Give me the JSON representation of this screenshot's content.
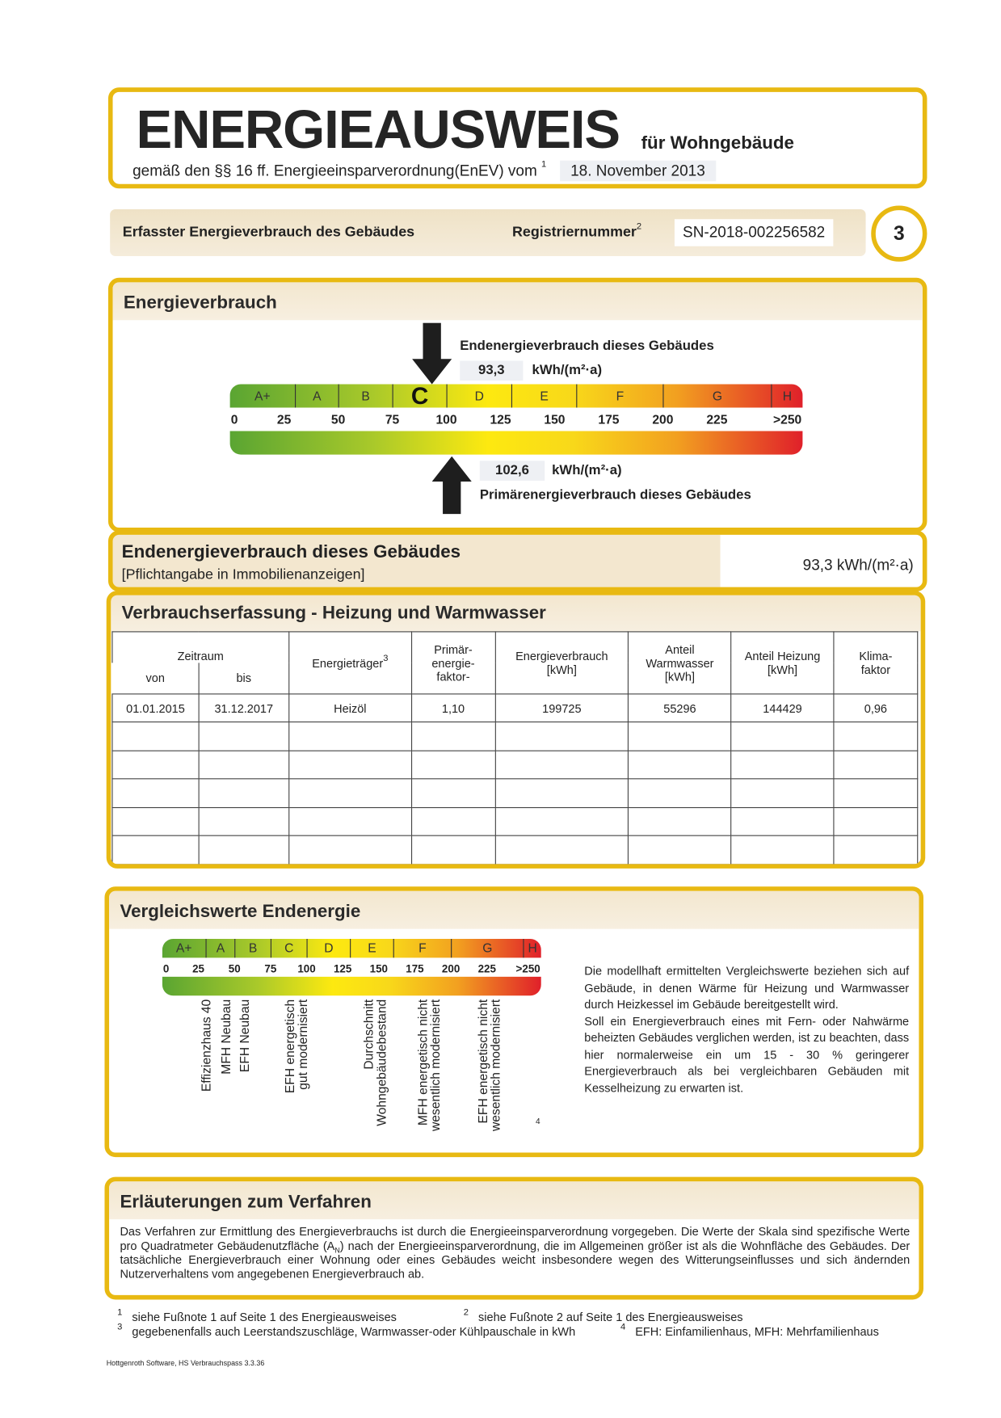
{
  "header": {
    "title": "ENERGIEAUSWEIS",
    "subtitle": "für Wohngebäude",
    "legal_basis": "gemäß den §§ 16 ff. Energieeinsparverordnung(EnEV) vom",
    "legal_basis_footnote": "1",
    "enev_date": "18. November 2013"
  },
  "register_bar": {
    "label": "Erfasster Energieverbrauch des Gebäudes",
    "reg_label": "Registriernummer",
    "reg_footnote": "2",
    "reg_number": "SN-2018-002256582",
    "page_number": "3"
  },
  "energieverbrauch": {
    "title": "Energieverbrauch",
    "end_label": "Endenergieverbrauch dieses Gebäudes",
    "end_value": "93,3",
    "unit": "kWh/(m²·a)",
    "primary_value": "102,6",
    "primary_label": "Primärenergieverbrauch dieses Gebäudes",
    "end_value_num": 93.3,
    "primary_value_num": 102.6,
    "highlighted_class": "C"
  },
  "scale": {
    "classes": [
      {
        "label": "A+",
        "from": 0,
        "to": 30
      },
      {
        "label": "A",
        "from": 30,
        "to": 50
      },
      {
        "label": "B",
        "from": 50,
        "to": 75
      },
      {
        "label": "C",
        "from": 75,
        "to": 100
      },
      {
        "label": "D",
        "from": 100,
        "to": 130
      },
      {
        "label": "E",
        "from": 130,
        "to": 160
      },
      {
        "label": "F",
        "from": 160,
        "to": 200
      },
      {
        "label": "G",
        "from": 200,
        "to": 250
      },
      {
        "label": "H",
        "from": 250,
        "to": 265
      }
    ],
    "ticks": [
      "0",
      "25",
      "50",
      "75",
      "100",
      "125",
      "150",
      "175",
      "200",
      "225",
      ">250"
    ],
    "colors": {
      "green": "#5aa532",
      "yellow": "#fde910",
      "orange": "#f2a020",
      "red": "#e0202a"
    }
  },
  "end_summary": {
    "title": "Endenergieverbrauch dieses Gebäudes",
    "note": "[Pflichtangabe in Immobilienanzeigen]",
    "value": "93,3 kWh/(m²·a)"
  },
  "verbrauch": {
    "title": "Verbrauchserfassung - Heizung und Warmwasser",
    "headers": {
      "zeitraum": "Zeitraum",
      "von": "von",
      "bis": "bis",
      "traeger": "Energieträger",
      "traeger_footnote": "3",
      "pef": "Primär-\nenergie-\nfaktor-",
      "verbrauch": "Energieverbrauch\n[kWh]",
      "warmwasser": "Anteil\nWarmwasser\n[kWh]",
      "heizung": "Anteil Heizung\n[kWh]",
      "klima": "Klima-\nfaktor"
    },
    "rows": [
      [
        "01.01.2015",
        "31.12.2017",
        "Heizöl",
        "1,10",
        "199725",
        "55296",
        "144429",
        "0,96"
      ],
      [
        "",
        "",
        "",
        "",
        "",
        "",
        "",
        ""
      ],
      [
        "",
        "",
        "",
        "",
        "",
        "",
        "",
        ""
      ],
      [
        "",
        "",
        "",
        "",
        "",
        "",
        "",
        ""
      ],
      [
        "",
        "",
        "",
        "",
        "",
        "",
        "",
        ""
      ],
      [
        "",
        "",
        "",
        "",
        "",
        "",
        "",
        ""
      ]
    ]
  },
  "vergleich": {
    "title": "Vergleichswerte Endenergie",
    "references": [
      {
        "line1": "Effizienzhaus 40",
        "line2": "",
        "value": 30
      },
      {
        "line1": "MFH Neubau",
        "line2": "",
        "value": 44
      },
      {
        "line1": "EFH Neubau",
        "line2": "",
        "value": 57
      },
      {
        "line1": "EFH energetisch",
        "line2": "gut modernisiert",
        "value": 88
      },
      {
        "line1": "Durchschnitt",
        "line2": "Wohngebäudebestand",
        "value": 143
      },
      {
        "line1": "MFH energetisch nicht",
        "line2": "wesentlich modernisiert",
        "value": 180
      },
      {
        "line1": "EFH energetisch nicht",
        "line2": "wesentlich modernisiert",
        "value": 222
      }
    ],
    "footnote_mark": "4",
    "text1": "Die modellhaft ermittelten Vergleichswerte beziehen sich auf Gebäude, in denen Wärme für Heizung und Warmwasser durch Heizkessel im Gebäude bereitgestellt wird.",
    "text2": "Soll ein Energieverbrauch eines mit Fern- oder Nahwärme beheizten Gebäudes verglichen werden, ist zu beachten, dass hier normalerweise ein um 15 - 30 % geringerer Energieverbrauch als bei vergleichbaren Gebäuden mit Kesselheizung zu erwarten ist."
  },
  "erlaeuterungen": {
    "title": "Erläuterungen zum Verfahren",
    "text_a": "Das Verfahren zur Ermittlung des Energieverbrauchs ist durch die Energieeinsparverordnung vorgegeben. Die Werte der Skala sind spezifische Werte pro Quadratmeter Gebäudenutzfläche (A",
    "text_sub": "N",
    "text_b": ") nach der Energieeinsparverordnung, die im Allgemeinen größer ist als die Wohnfläche des Gebäudes. Der tatsächliche Energieverbrauch einer Wohnung oder eines Gebäudes weicht insbesondere wegen des Witterungseinflusses und sich ändernden Nutzerverhaltens vom angegebenen Energieverbrauch ab."
  },
  "footnotes": [
    {
      "mark": "1",
      "text": "siehe Fußnote 1 auf Seite 1 des Energieausweises"
    },
    {
      "mark": "2",
      "text": "siehe Fußnote 2 auf Seite 1 des Energieausweises"
    },
    {
      "mark": "3",
      "text": "gegebenenfalls auch Leerstandszuschläge, Warmwasser-oder Kühlpauschale in kWh"
    },
    {
      "mark": "4",
      "text": "EFH: Einfamilienhaus, MFH: Mehrfamilienhaus"
    }
  ],
  "software": "Hottgenroth Software, HS Verbrauchspass 3.3.36"
}
